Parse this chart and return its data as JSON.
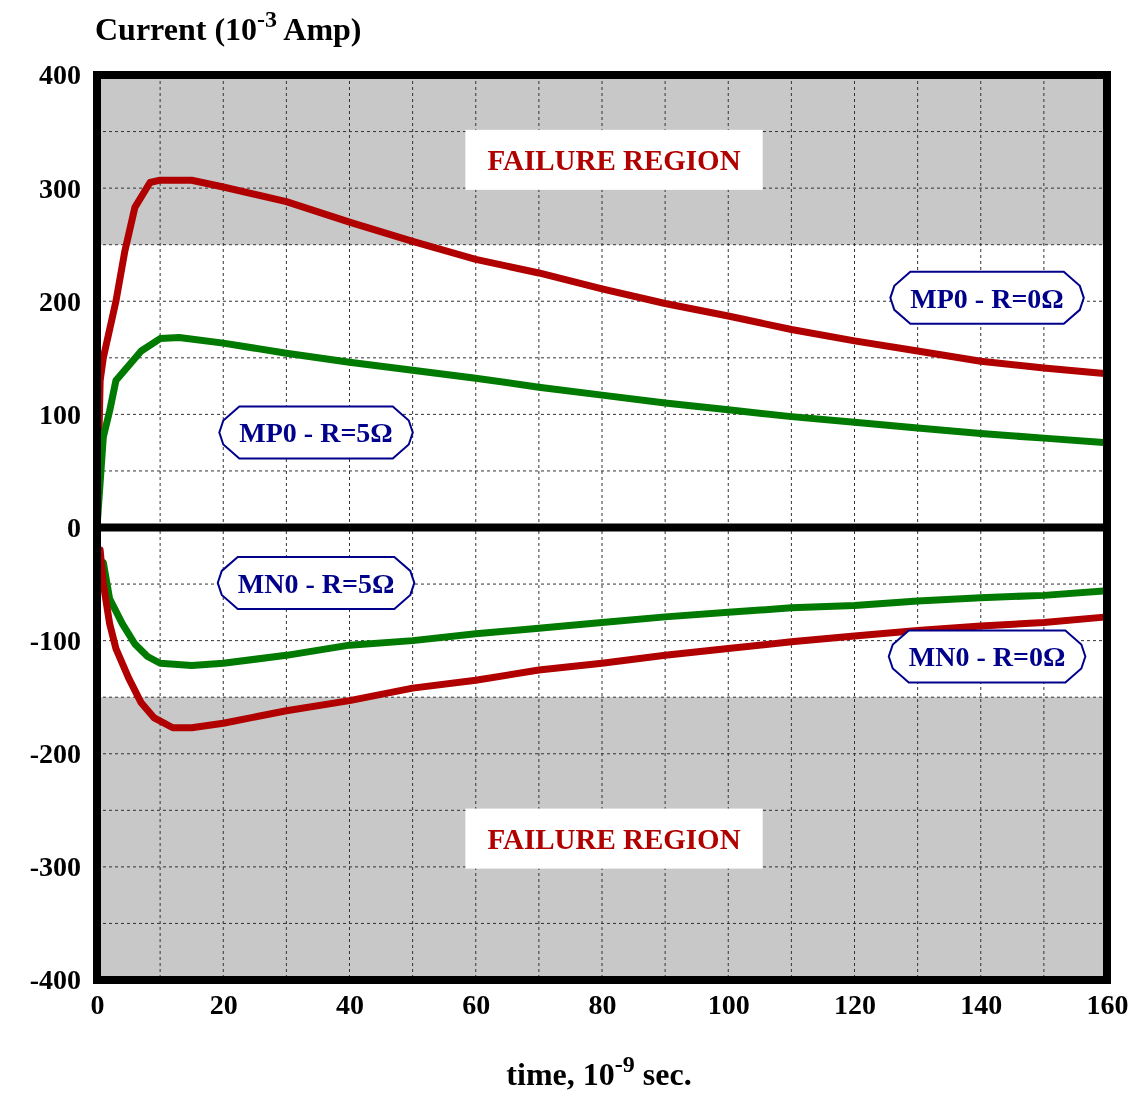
{
  "chart_data": {
    "type": "line",
    "xlabel": "time, 10$^{-9}$ sec.",
    "ylabel": "Current (10$^{-3}$ Amp)",
    "xlim": [
      0,
      160
    ],
    "ylim": [
      -400,
      400
    ],
    "xticks": [
      0,
      {
        "value": 10,
        "label": null
      },
      20,
      {
        "value": 30,
        "label": null
      },
      40,
      {
        "value": 50,
        "label": null
      },
      60,
      {
        "value": 70,
        "label": null
      },
      80,
      {
        "value": 90,
        "label": null
      },
      100,
      {
        "value": 110,
        "label": null
      },
      120,
      {
        "value": 130,
        "label": null
      },
      140,
      {
        "value": 150,
        "label": null
      },
      160
    ],
    "yticks": [
      -400,
      {
        "value": -350,
        "label": null
      },
      -300,
      {
        "value": -250,
        "label": null
      },
      -200,
      {
        "value": -150,
        "label": null
      },
      -100,
      {
        "value": -50,
        "label": null
      },
      0,
      {
        "value": 50,
        "label": null
      },
      100,
      {
        "value": 150,
        "label": null
      },
      200,
      {
        "value": 250,
        "label": null
      },
      300,
      {
        "value": 350,
        "label": null
      },
      400
    ],
    "grid": true,
    "legend": false,
    "line_style": "solid",
    "marker": "none",
    "bands": [
      {
        "axis": "y",
        "from": 250,
        "to": 400,
        "label": "FAILURE REGION",
        "color": "#c8c8c8"
      },
      {
        "axis": "y",
        "from": -400,
        "to": -150,
        "label": "FAILURE REGION",
        "color": "#c8c8c8"
      }
    ],
    "series": [
      {
        "name": "MP0 - R=0Ω",
        "color": "#b00000",
        "x": [
          0,
          0.5,
          1,
          3,
          4.4,
          6,
          8.4,
          10,
          15,
          20,
          30,
          40,
          50,
          60,
          70,
          80,
          90,
          100,
          110,
          120,
          130,
          140,
          150,
          160
        ],
        "values": [
          0,
          130,
          150,
          200,
          244,
          283,
          305,
          307,
          307,
          301,
          288,
          270,
          253,
          237,
          225,
          211,
          198,
          187,
          175,
          165,
          156,
          147,
          141,
          136
        ]
      },
      {
        "name": "MP0 - R=5Ω",
        "color": "#007a00",
        "x": [
          0,
          0.5,
          1,
          2,
          3,
          5,
          7,
          10,
          13,
          20,
          30,
          40,
          50,
          60,
          70,
          80,
          90,
          100,
          110,
          120,
          130,
          140,
          150,
          160
        ],
        "values": [
          0,
          40,
          80,
          103,
          130,
          143,
          156,
          167,
          168,
          163,
          154,
          146,
          139,
          132,
          124,
          117,
          110,
          104,
          98,
          93,
          88,
          83,
          79,
          75
        ]
      },
      {
        "name": "MN0 - R=5Ω",
        "color": "#007a00",
        "x": [
          0.5,
          1,
          2,
          4,
          6,
          8,
          10,
          15,
          20,
          30,
          40,
          50,
          60,
          70,
          80,
          90,
          100,
          110,
          120,
          130,
          140,
          150,
          160
        ],
        "values": [
          -30,
          -31,
          -63,
          -85,
          -103,
          -114,
          -120,
          -122,
          -120,
          -113,
          -104,
          -100,
          -94,
          -89,
          -84,
          -79,
          -75,
          -71,
          -69,
          -65,
          -62,
          -60,
          -56
        ]
      },
      {
        "name": "MN0 - R=0Ω",
        "color": "#b00000",
        "x": [
          0.5,
          1,
          2,
          3,
          5,
          7,
          9,
          12,
          15,
          20,
          30,
          40,
          50,
          60,
          70,
          80,
          90,
          100,
          110,
          120,
          130,
          140,
          150,
          160
        ],
        "values": [
          -20,
          -50,
          -85,
          -107,
          -133,
          -155,
          -168,
          -177,
          -177,
          -173,
          -162,
          -153,
          -142,
          -135,
          -126,
          -120,
          -113,
          -107,
          -101,
          -96,
          -91,
          -87,
          -84,
          -79
        ]
      }
    ]
  }
}
